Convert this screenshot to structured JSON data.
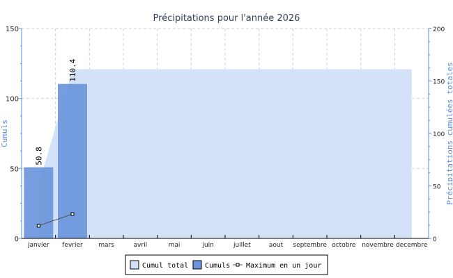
{
  "chart_data": {
    "type": "bar",
    "title": "Précipitations pour l'année 2026",
    "categories": [
      "janvier",
      "fevrier",
      "mars",
      "avril",
      "mai",
      "juin",
      "juillet",
      "aout",
      "septembre",
      "octobre",
      "novembre",
      "decembre"
    ],
    "ylabel": "Cumuls",
    "y2label": "Précipitations cumulées totales",
    "ylim": [
      0,
      150
    ],
    "y2lim": [
      0,
      200
    ],
    "yticks": [
      "0",
      "50",
      "100",
      "150"
    ],
    "y2ticks": [
      "0",
      "50",
      "100",
      "150",
      "200"
    ],
    "grid": true,
    "legend_position": "bottom",
    "series": [
      {
        "name": "Cumul total",
        "type": "area",
        "axis": "right",
        "color": "#d2e0f8",
        "values": [
          50.8,
          161.2,
          161.2,
          161.2,
          161.2,
          161.2,
          161.2,
          161.2,
          161.2,
          161.2,
          161.2,
          161.2
        ]
      },
      {
        "name": "Cumuls",
        "type": "bar",
        "axis": "left",
        "color": "#6a96dc",
        "values": [
          50.8,
          110.4,
          null,
          null,
          null,
          null,
          null,
          null,
          null,
          null,
          null,
          null
        ],
        "data_labels": [
          "50.8",
          "110.4"
        ]
      },
      {
        "name": "Maximum en un jour",
        "type": "line",
        "axis": "left",
        "color": "#555555",
        "values": [
          9,
          17.4,
          null,
          null,
          null,
          null,
          null,
          null,
          null,
          null,
          null,
          null
        ]
      }
    ],
    "colors": {
      "axis_label": "#5b8ee0",
      "title": "#333f5a"
    }
  }
}
